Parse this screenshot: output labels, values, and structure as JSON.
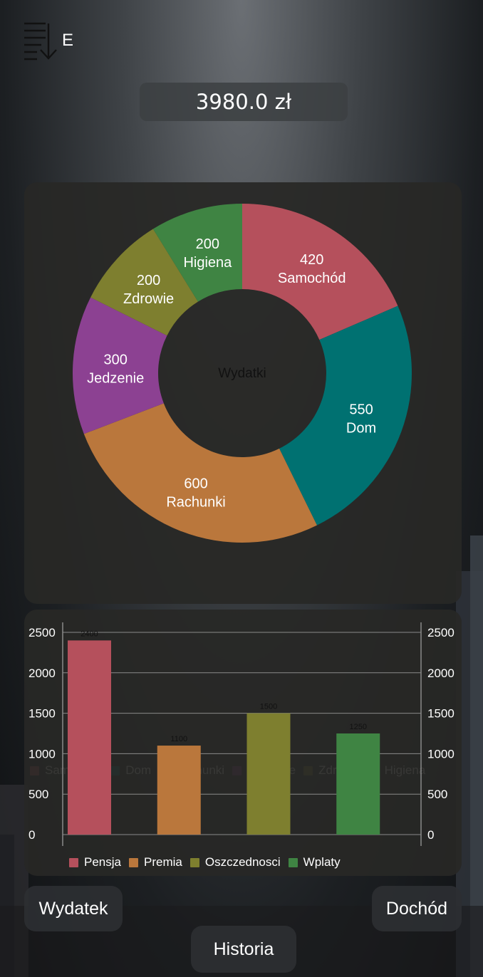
{
  "header": {
    "sort_button_label": "E",
    "balance": "3980.0 zł"
  },
  "colors": {
    "samochod": "#b5505c",
    "dom": "#007171",
    "rachunki": "#ba773c",
    "jedzenie": "#8c4192",
    "zdrowie": "#7e7f2f",
    "higiena": "#3f8443"
  },
  "chart_data": [
    {
      "type": "pie",
      "center_label": "Wydatki",
      "categories": [
        "Samochód",
        "Dom",
        "Rachunki",
        "Jedzenie",
        "Zdrowie",
        "Higiena"
      ],
      "values": [
        420,
        550,
        600,
        300,
        200,
        200
      ],
      "colors": [
        "#b5505c",
        "#007171",
        "#ba773c",
        "#8c4192",
        "#7e7f2f",
        "#3f8443"
      ],
      "legend_placement": "bottom"
    },
    {
      "type": "bar",
      "categories": [
        "Pensja",
        "Premia",
        "Oszczednosci",
        "Wplaty"
      ],
      "values": [
        2400,
        1100,
        1500,
        1250
      ],
      "colors": [
        "#b5505c",
        "#ba773c",
        "#7e7f2f",
        "#3f8443"
      ],
      "y_ticks": [
        0,
        500,
        1000,
        1500,
        2000,
        2500
      ],
      "ylim": [
        0,
        2500
      ],
      "grid": true,
      "legend_placement": "bottom"
    }
  ],
  "buttons": {
    "wydatek": "Wydatek",
    "dochod": "Dochód",
    "historia": "Historia"
  }
}
